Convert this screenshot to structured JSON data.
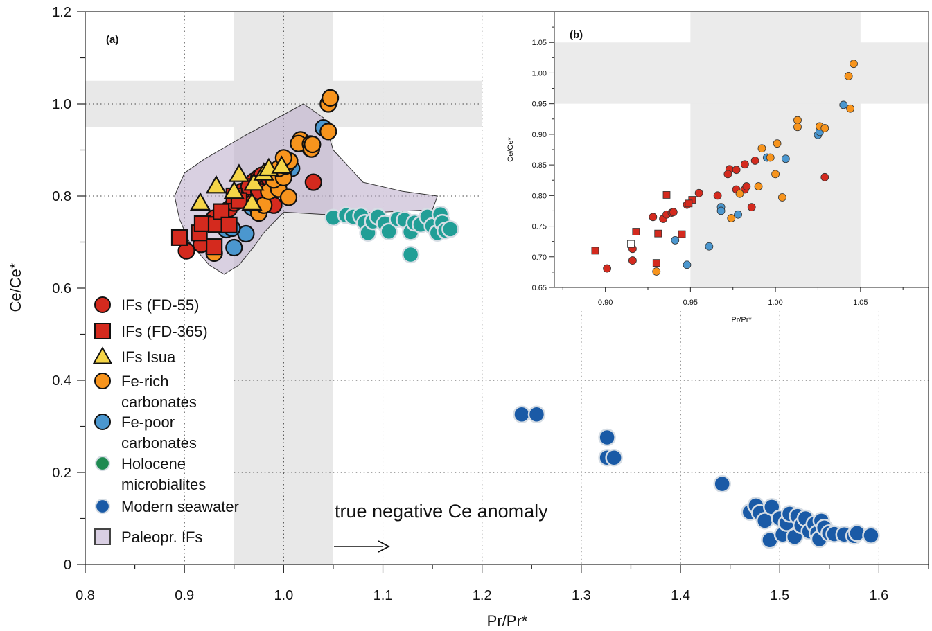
{
  "chart_data": [
    {
      "panel": "(a)",
      "type": "scatter",
      "xlabel": "Pr/Pr*",
      "ylabel": "Ce/Ce*",
      "xlim": [
        0.8,
        1.65
      ],
      "ylim": [
        0,
        1.2
      ],
      "x_ticks": [
        "0.8",
        "0.9",
        "1.0",
        "1.1",
        "1.2",
        "1.3",
        "1.4",
        "1.5",
        "1.6"
      ],
      "y_ticks": [
        "0",
        "0.2",
        "0.4",
        "0.6",
        "0.8",
        "1.0",
        "1.2"
      ],
      "shaded_bands": {
        "x_range": [
          0.95,
          1.05
        ],
        "y_range": [
          0.95,
          1.05
        ]
      },
      "annotation": "true negative Ce anomaly",
      "legend": [
        {
          "key": "fd55",
          "label": "IFs (FD-55)",
          "marker": "circle",
          "color": "#d42a1e"
        },
        {
          "key": "fd365",
          "label": "IFs (FD-365)",
          "marker": "square",
          "color": "#d42a1e"
        },
        {
          "key": "isua",
          "label": "IFs Isua",
          "marker": "triangle",
          "color": "#f5d547"
        },
        {
          "key": "ferich",
          "label_lines": [
            "Fe-rich",
            "carbonates"
          ],
          "marker": "circle",
          "color": "#f7941d"
        },
        {
          "key": "fepoor",
          "label_lines": [
            "Fe-poor",
            "carbonates"
          ],
          "marker": "circle",
          "color": "#4b97cf"
        },
        {
          "key": "holocene",
          "label_lines": [
            "Holocene",
            "microbialites"
          ],
          "marker": "circle",
          "color": "#1f8a52"
        },
        {
          "key": "seawater",
          "label": "Modern seawater",
          "marker": "circle",
          "color": "#1a5aa6"
        },
        {
          "key": "paleo",
          "label": "Paleopr. IFs",
          "marker": "square",
          "color": "#d9cfe3"
        }
      ],
      "paleo_region": [
        [
          0.92,
          0.88
        ],
        [
          0.96,
          0.93
        ],
        [
          1.02,
          1.0
        ],
        [
          1.04,
          0.97
        ],
        [
          1.05,
          0.9
        ],
        [
          1.08,
          0.83
        ],
        [
          1.12,
          0.81
        ],
        [
          1.155,
          0.8
        ],
        [
          1.15,
          0.77
        ],
        [
          1.1,
          0.765
        ],
        [
          1.04,
          0.76
        ],
        [
          1.0,
          0.765
        ],
        [
          0.98,
          0.72
        ],
        [
          0.97,
          0.69
        ],
        [
          0.955,
          0.65
        ],
        [
          0.94,
          0.63
        ],
        [
          0.925,
          0.65
        ],
        [
          0.905,
          0.7
        ],
        [
          0.895,
          0.75
        ],
        [
          0.89,
          0.8
        ],
        [
          0.9,
          0.85
        ]
      ],
      "series": [
        {
          "key": "holocene",
          "marker": "circle",
          "color": "#219e96",
          "points": [
            [
              1.05,
              0.753
            ],
            [
              1.063,
              0.758
            ],
            [
              1.07,
              0.755
            ],
            [
              1.078,
              0.757
            ],
            [
              1.082,
              0.742
            ],
            [
              1.085,
              0.72
            ],
            [
              1.09,
              0.745
            ],
            [
              1.095,
              0.755
            ],
            [
              1.102,
              0.74
            ],
            [
              1.106,
              0.723
            ],
            [
              1.115,
              0.75
            ],
            [
              1.122,
              0.748
            ],
            [
              1.128,
              0.722
            ],
            [
              1.132,
              0.742
            ],
            [
              1.138,
              0.738
            ],
            [
              1.145,
              0.755
            ],
            [
              1.15,
              0.735
            ],
            [
              1.155,
              0.72
            ],
            [
              1.158,
              0.76
            ],
            [
              1.16,
              0.742
            ],
            [
              1.163,
              0.725
            ],
            [
              1.168,
              0.728
            ],
            [
              1.128,
              0.673
            ]
          ]
        },
        {
          "key": "fepoor",
          "marker": "circle",
          "color": "#4b97cf",
          "points": [
            [
              0.95,
              0.688
            ],
            [
              0.962,
              0.718
            ],
            [
              0.942,
              0.727
            ],
            [
              0.948,
              0.73
            ],
            [
              0.968,
              0.775
            ],
            [
              0.975,
              0.77
            ],
            [
              0.97,
              0.783
            ],
            [
              1.008,
              0.86
            ],
            [
              1.027,
              0.903
            ],
            [
              1.04,
              0.948
            ]
          ]
        },
        {
          "key": "fd55",
          "marker": "circle",
          "color": "#d42a1e",
          "points": [
            [
              0.902,
              0.681
            ],
            [
              0.917,
              0.695
            ],
            [
              0.93,
              0.752
            ],
            [
              0.94,
              0.765
            ],
            [
              0.945,
              0.772
            ],
            [
              0.95,
              0.785
            ],
            [
              0.955,
              0.79
            ],
            [
              0.962,
              0.8
            ],
            [
              0.97,
              0.832
            ],
            [
              0.975,
              0.84
            ],
            [
              0.978,
              0.845
            ],
            [
              0.983,
              0.82
            ],
            [
              0.985,
              0.81
            ],
            [
              0.99,
              0.78
            ],
            [
              0.958,
              0.81
            ],
            [
              0.965,
              0.82
            ],
            [
              0.975,
              0.81
            ],
            [
              0.985,
              0.84
            ],
            [
              1.03,
              0.83
            ]
          ]
        },
        {
          "key": "ferich",
          "marker": "circle",
          "color": "#f7941d",
          "points": [
            [
              0.93,
              0.676
            ],
            [
              0.975,
              0.763
            ],
            [
              0.98,
              0.78
            ],
            [
              0.985,
              0.81
            ],
            [
              0.995,
              0.815
            ],
            [
              1.005,
              0.797
            ],
            [
              0.99,
              0.835
            ],
            [
              1.0,
              0.84
            ],
            [
              0.995,
              0.86
            ],
            [
              1.002,
              0.865
            ],
            [
              1.006,
              0.876
            ],
            [
              1.0,
              0.883
            ],
            [
              1.017,
              0.922
            ],
            [
              1.015,
              0.914
            ],
            [
              1.027,
              0.913
            ],
            [
              1.028,
              0.902
            ],
            [
              1.029,
              0.912
            ],
            [
              1.045,
              1.0
            ],
            [
              1.047,
              1.013
            ],
            [
              1.045,
              0.94
            ]
          ]
        },
        {
          "key": "fd365",
          "marker": "square",
          "color": "#d42a1e",
          "points": [
            [
              0.895,
              0.71
            ],
            [
              0.915,
              0.72
            ],
            [
              0.918,
              0.74
            ],
            [
              0.93,
              0.69
            ],
            [
              0.932,
              0.738
            ],
            [
              0.937,
              0.766
            ],
            [
              0.945,
              0.737
            ],
            [
              0.95,
              0.8
            ],
            [
              0.955,
              0.79
            ]
          ]
        },
        {
          "key": "isua",
          "marker": "triangle",
          "color": "#f5d547",
          "points": [
            [
              0.916,
              0.785
            ],
            [
              0.932,
              0.822
            ],
            [
              0.95,
              0.81
            ],
            [
              0.955,
              0.847
            ],
            [
              0.968,
              0.785
            ],
            [
              0.97,
              0.828
            ],
            [
              0.98,
              0.85
            ],
            [
              0.985,
              0.86
            ],
            [
              0.998,
              0.865
            ]
          ]
        },
        {
          "key": "seawater",
          "marker": "circle",
          "color": "#1a5aa6",
          "points": [
            [
              1.24,
              0.326
            ],
            [
              1.255,
              0.326
            ],
            [
              1.326,
              0.276
            ],
            [
              1.326,
              0.232
            ],
            [
              1.333,
              0.232
            ],
            [
              1.442,
              0.175
            ],
            [
              1.47,
              0.114
            ],
            [
              1.476,
              0.128
            ],
            [
              1.48,
              0.112
            ],
            [
              1.485,
              0.095
            ],
            [
              1.49,
              0.053
            ],
            [
              1.492,
              0.125
            ],
            [
              1.5,
              0.1
            ],
            [
              1.503,
              0.065
            ],
            [
              1.507,
              0.09
            ],
            [
              1.51,
              0.11
            ],
            [
              1.515,
              0.06
            ],
            [
              1.518,
              0.105
            ],
            [
              1.522,
              0.085
            ],
            [
              1.526,
              0.1
            ],
            [
              1.53,
              0.072
            ],
            [
              1.535,
              0.088
            ],
            [
              1.538,
              0.068
            ],
            [
              1.54,
              0.055
            ],
            [
              1.542,
              0.095
            ],
            [
              1.545,
              0.08
            ],
            [
              1.55,
              0.068
            ],
            [
              1.555,
              0.066
            ],
            [
              1.565,
              0.065
            ],
            [
              1.575,
              0.062
            ],
            [
              1.578,
              0.068
            ],
            [
              1.592,
              0.063
            ]
          ]
        }
      ]
    },
    {
      "panel": "(b)",
      "type": "scatter",
      "xlabel": "Pr/Pr*",
      "ylabel": "Ce/Ce*",
      "xlim": [
        0.87,
        1.09
      ],
      "ylim": [
        0.65,
        1.1
      ],
      "x_ticks": [
        "0.90",
        "0.95",
        "1.00",
        "1.05"
      ],
      "y_ticks": [
        "0.65",
        "0.70",
        "0.75",
        "0.80",
        "0.85",
        "0.90",
        "0.95",
        "1.00",
        "1.05"
      ],
      "shaded_bands": {
        "x_range": [
          0.95,
          1.05
        ],
        "y_range": [
          0.95,
          1.05
        ]
      },
      "series": [
        {
          "key": "fd55",
          "marker": "circle",
          "color": "#d42a1e",
          "points": [
            [
              0.901,
              0.681
            ],
            [
              0.916,
              0.713
            ],
            [
              0.916,
              0.694
            ],
            [
              0.928,
              0.765
            ],
            [
              0.934,
              0.762
            ],
            [
              0.936,
              0.769
            ],
            [
              0.939,
              0.772
            ],
            [
              0.94,
              0.773
            ],
            [
              0.948,
              0.785
            ],
            [
              0.955,
              0.804
            ],
            [
              0.966,
              0.8
            ],
            [
              0.973,
              0.843
            ],
            [
              0.972,
              0.835
            ],
            [
              0.977,
              0.842
            ],
            [
              0.977,
              0.81
            ],
            [
              0.982,
              0.81
            ],
            [
              0.983,
              0.815
            ],
            [
              0.982,
              0.851
            ],
            [
              0.986,
              0.781
            ],
            [
              0.988,
              0.857
            ],
            [
              1.029,
              0.83
            ]
          ]
        },
        {
          "key": "fd365",
          "marker": "square",
          "color": "#d42a1e",
          "points": [
            [
              0.894,
              0.71
            ],
            [
              0.918,
              0.741
            ],
            [
              0.93,
              0.69
            ],
            [
              0.931,
              0.738
            ],
            [
              0.936,
              0.801
            ],
            [
              0.945,
              0.737
            ],
            [
              0.951,
              0.793
            ],
            [
              0.949,
              0.787
            ]
          ]
        },
        {
          "key": "fd365_open",
          "marker": "square",
          "color": "#ffffff",
          "points": [
            [
              0.915,
              0.721
            ]
          ]
        },
        {
          "key": "fepoor",
          "marker": "circle",
          "color": "#4b97cf",
          "points": [
            [
              0.941,
              0.727
            ],
            [
              0.948,
              0.687
            ],
            [
              0.961,
              0.717
            ],
            [
              0.968,
              0.781
            ],
            [
              0.968,
              0.775
            ],
            [
              0.978,
              0.769
            ],
            [
              0.995,
              0.862
            ],
            [
              1.006,
              0.86
            ],
            [
              1.025,
              0.899
            ],
            [
              1.026,
              0.904
            ],
            [
              1.04,
              0.948
            ]
          ]
        },
        {
          "key": "ferich",
          "marker": "circle",
          "color": "#f7941d",
          "points": [
            [
              0.93,
              0.676
            ],
            [
              0.974,
              0.763
            ],
            [
              0.979,
              0.803
            ],
            [
              0.99,
              0.815
            ],
            [
              0.992,
              0.877
            ],
            [
              0.997,
              0.862
            ],
            [
              1.0,
              0.835
            ],
            [
              1.001,
              0.885
            ],
            [
              1.004,
              0.797
            ],
            [
              1.013,
              0.923
            ],
            [
              1.013,
              0.912
            ],
            [
              1.026,
              0.913
            ],
            [
              1.029,
              0.91
            ],
            [
              1.043,
              0.995
            ],
            [
              1.046,
              1.015
            ],
            [
              1.044,
              0.942
            ]
          ]
        }
      ]
    }
  ]
}
